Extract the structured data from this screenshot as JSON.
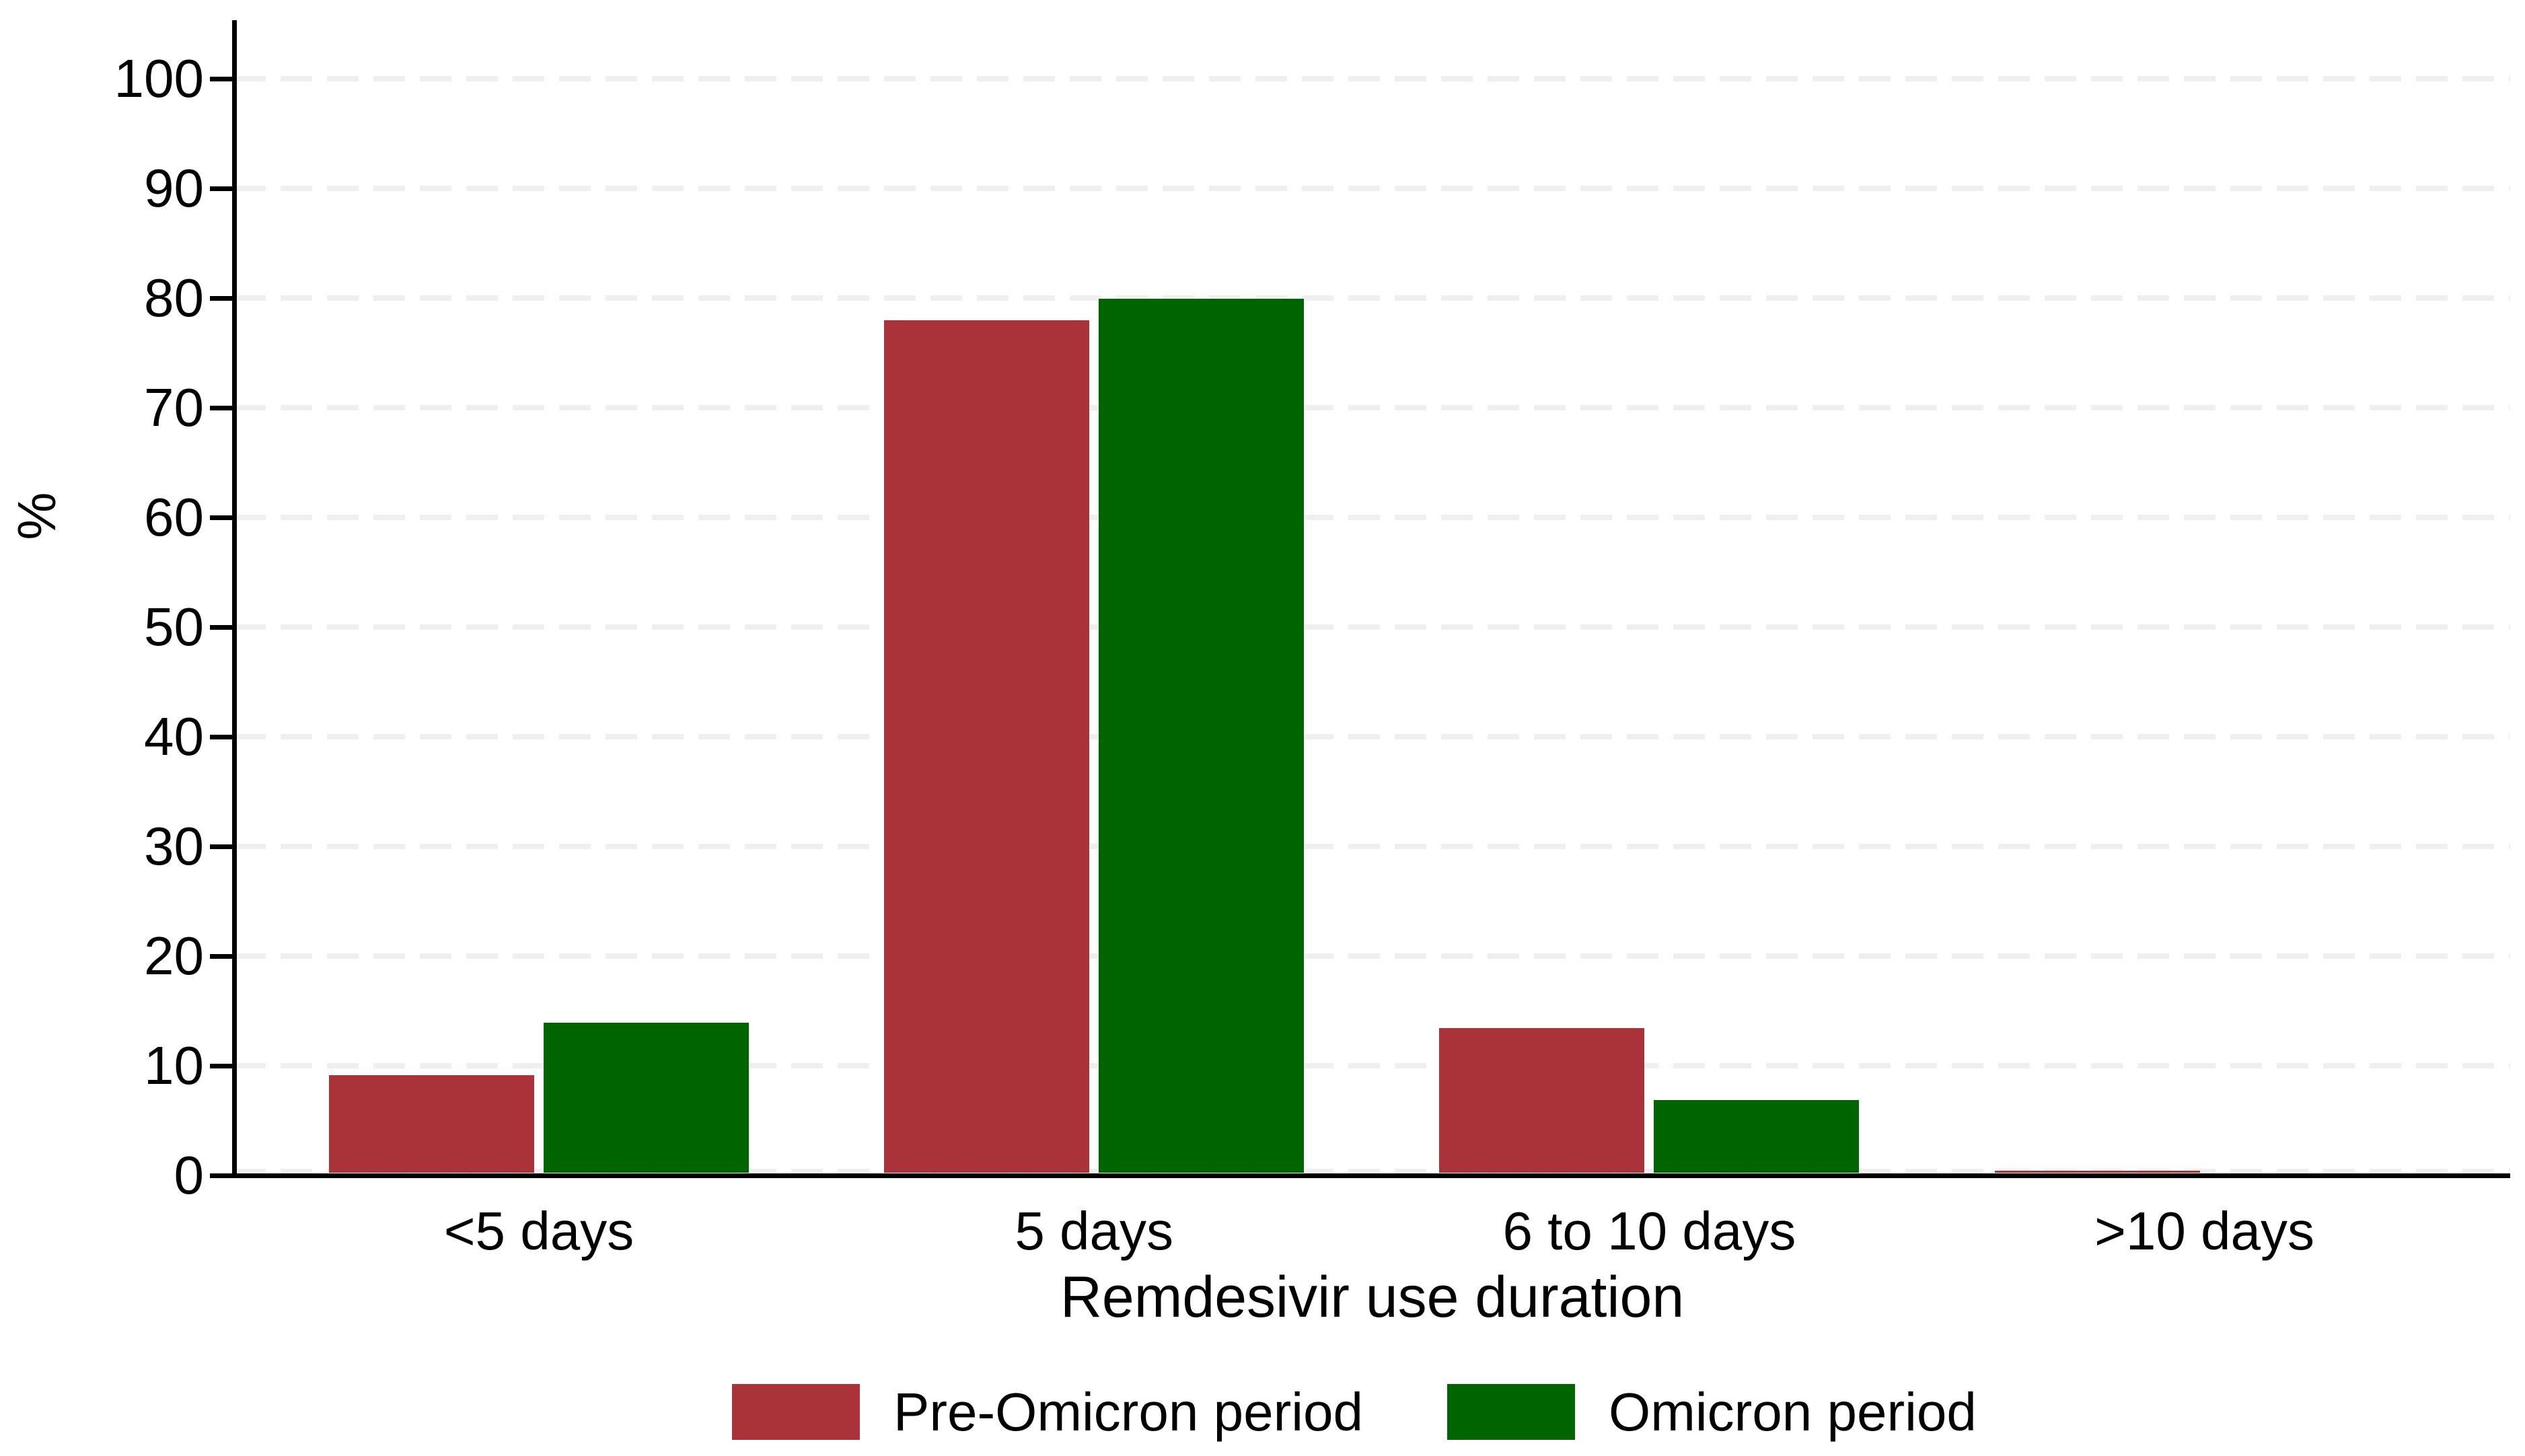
{
  "chart_data": {
    "type": "bar",
    "title": "",
    "xlabel": "Remdesivir use duration",
    "ylabel": "%",
    "categories": [
      "<5 days",
      "5 days",
      "6 to 10 days",
      ">10 days"
    ],
    "series": [
      {
        "name": "Pre-Omicron period",
        "color": "#AA3339",
        "values": [
          8.9,
          77.7,
          13.2,
          0.2
        ]
      },
      {
        "name": "Omicron period",
        "color": "#006400",
        "values": [
          13.7,
          79.7,
          6.6,
          0.0
        ]
      }
    ],
    "ylim": [
      0,
      100
    ],
    "ytick_step": 10,
    "ytick_labels": [
      "0",
      "10",
      "20",
      "30",
      "40",
      "50",
      "60",
      "70",
      "80",
      "90",
      "100"
    ],
    "grid": "horizontal dashed light-gray gridlines at every 10",
    "legend_position": "bottom"
  },
  "colors": {
    "background": "#FFFFFF",
    "axis": "#000000",
    "gridline": "#EFEFEF",
    "series_pre_omicron": "#AA3339",
    "series_omicron": "#006400"
  }
}
